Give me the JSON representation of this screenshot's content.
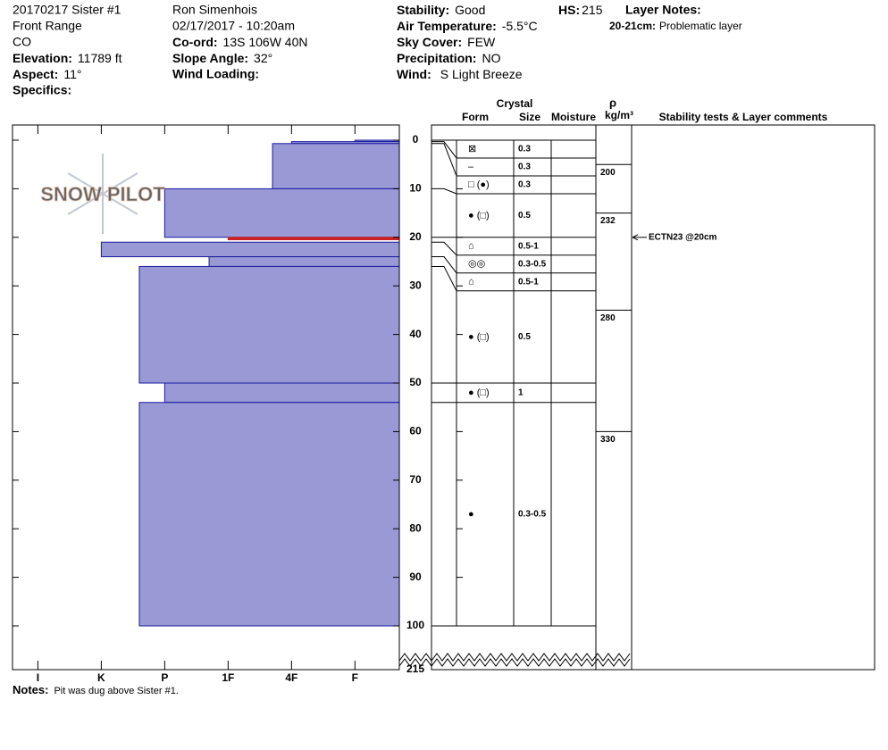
{
  "header": {
    "pit_name": "20170217 Sister #1",
    "range": "Front Range",
    "state": "CO",
    "elevation": {
      "label": "Elevation:",
      "value": "11789 ft"
    },
    "aspect": {
      "label": "Aspect:",
      "value": "11°"
    },
    "specifics": {
      "label": "Specifics:"
    },
    "observer": "Ron Simenhois",
    "datetime": "02/17/2017 - 10:20am",
    "coord": {
      "label": "Co-ord:",
      "value": "13S 106W 40N"
    },
    "slope_angle": {
      "label": "Slope Angle:",
      "value": "32°"
    },
    "wind_loading": {
      "label": "Wind Loading:"
    },
    "stability": {
      "label": "Stability:",
      "value": "Good"
    },
    "air_temperature": {
      "label": "Air Temperature:",
      "value": "-5.5°C"
    },
    "sky_cover": {
      "label": "Sky Cover:",
      "value": "FEW"
    },
    "precipitation": {
      "label": "Precipitation:",
      "value": "NO"
    },
    "wind": {
      "label": "Wind:",
      "value": "S Light Breeze"
    },
    "hs": {
      "label": "HS:",
      "value": 215
    },
    "layer_notes": {
      "label": "Layer Notes:",
      "items": [
        {
          "range": "20-21cm:",
          "text": "Problematic layer"
        }
      ]
    }
  },
  "profile": {
    "ylim": [
      0,
      100
    ],
    "depth_ticks": [
      0,
      10,
      20,
      30,
      40,
      50,
      60,
      70,
      80,
      90,
      100
    ],
    "bottom_depth": 215,
    "xlim": [
      6.4,
      0.3
    ],
    "hardness_ticks": [
      {
        "value": 6,
        "label": "I"
      },
      {
        "value": 5,
        "label": "K"
      },
      {
        "value": 4,
        "label": "P"
      },
      {
        "value": 3,
        "label": "1F"
      },
      {
        "value": 2,
        "label": "4F"
      },
      {
        "value": 1,
        "label": "F"
      }
    ],
    "fill": "#9999d6",
    "edge": "#1a1aa0",
    "layers": [
      {
        "top": 0,
        "bottom": 0.3,
        "hardness": 1
      },
      {
        "top": 0.3,
        "bottom": 0.7,
        "hardness": 2
      },
      {
        "top": 0.7,
        "bottom": 10,
        "hardness": 2.3
      },
      {
        "top": 10,
        "bottom": 20,
        "hardness": 4
      },
      {
        "top": 20,
        "bottom": 20.5,
        "hardness": 3,
        "color": "#cc2222"
      },
      {
        "top": 21,
        "bottom": 24,
        "hardness": 5
      },
      {
        "top": 24,
        "bottom": 26,
        "hardness": 3.3
      },
      {
        "top": 26,
        "bottom": 50,
        "hardness": 4.4
      },
      {
        "top": 50,
        "bottom": 54,
        "hardness": 4
      },
      {
        "top": 54,
        "bottom": 100,
        "hardness": 4.4
      }
    ]
  },
  "table": {
    "headers": {
      "crystal": "Crystal",
      "form": "Form",
      "size": "Size",
      "moisture": "Moisture",
      "rho": "ρ",
      "density_unit": "kg/m³",
      "comments": "Stability tests & Layer comments"
    },
    "rows": [
      {
        "top": 0,
        "bottom": 0.3,
        "form": "⊠",
        "size": "0.3"
      },
      {
        "top": 0.3,
        "bottom": 0.7,
        "form": "–",
        "size": "0.3"
      },
      {
        "top": 0.7,
        "bottom": 10,
        "form": "□ (●)",
        "size": "0.3"
      },
      {
        "top": 10,
        "bottom": 20,
        "form": "● (□)",
        "size": "0.5"
      },
      {
        "top": 20,
        "bottom": 21,
        "form": "⌂",
        "size": "0.5-1"
      },
      {
        "top": 21,
        "bottom": 24,
        "form": "◎◎",
        "size": "0.3-0.5"
      },
      {
        "top": 24,
        "bottom": 26,
        "form": "⌂",
        "size": "0.5-1"
      },
      {
        "top": 26,
        "bottom": 50,
        "form": "● (□)",
        "size": "0.5"
      },
      {
        "top": 50,
        "bottom": 54,
        "form": "● (□)",
        "size": "1"
      },
      {
        "top": 54,
        "bottom": 100,
        "form": "●",
        "size": "0.3-0.5"
      }
    ],
    "density": [
      {
        "top": 5,
        "bottom": 15,
        "value": 200
      },
      {
        "top": 15,
        "bottom": 35,
        "value": 232
      },
      {
        "top": 35,
        "bottom": 60,
        "value": 280
      },
      {
        "top": 60,
        "bottom": 100,
        "value": 330
      }
    ],
    "tests": [
      {
        "depth": 20,
        "text": "ECTN23 @20cm"
      }
    ]
  },
  "notes": {
    "label": "Notes:",
    "text": "Pit was dug above Sister #1."
  },
  "logo": "SNOW PILOT"
}
